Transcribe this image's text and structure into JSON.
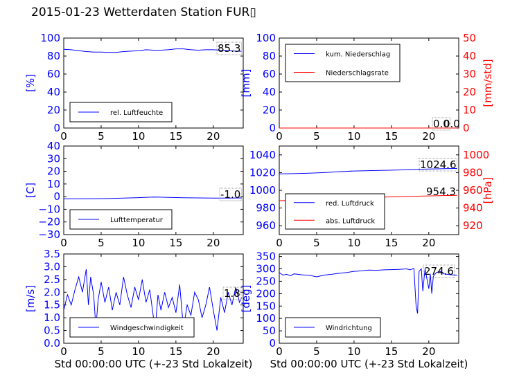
{
  "title": "2015-01-23 Wetterdaten Station FUR▯",
  "colors": {
    "primary": "#0000ff",
    "secondary": "#ff0000",
    "axis": "#000000"
  },
  "chart_data": [
    {
      "id": "humidity",
      "type": "line",
      "xlabel": "",
      "xlim": [
        0,
        24
      ],
      "xticks": [
        0,
        5,
        10,
        15,
        20
      ],
      "ylabel": "[%]",
      "ylim": [
        0,
        100
      ],
      "yticks": [
        0,
        20,
        40,
        60,
        80,
        100
      ],
      "current_value": "85.3",
      "legend": "bottom-left",
      "series": [
        {
          "name": "rel. Luftfeuchte",
          "color": "#0000ff",
          "x": [
            0,
            1,
            2,
            3,
            4,
            5,
            6,
            7,
            8,
            9,
            10,
            11,
            12,
            13,
            14,
            15,
            16,
            17,
            18,
            19,
            20,
            21,
            22,
            23,
            23.8
          ],
          "y": [
            87.5,
            87,
            86,
            85,
            84.5,
            84.5,
            84,
            84,
            85,
            85.5,
            86,
            87,
            86.5,
            86.5,
            87,
            88,
            88,
            87,
            86.5,
            87,
            87,
            86.5,
            86,
            85.5,
            85.3
          ]
        }
      ]
    },
    {
      "id": "precipitation",
      "type": "line",
      "xlabel": "",
      "xlim": [
        0,
        24
      ],
      "xticks": [
        0,
        5,
        10,
        15,
        20
      ],
      "ylabel": "[mm]",
      "ylim": [
        0,
        100
      ],
      "yticks": [
        0,
        20,
        40,
        60,
        80,
        100
      ],
      "ylabel_right": "[mm/std]",
      "ylim_right": [
        0,
        50
      ],
      "yticks_right": [
        0,
        10,
        20,
        30,
        40,
        50
      ],
      "current_value": "0.0",
      "current_value_right": "0.0",
      "legend": "top-left",
      "series": [
        {
          "name": "kum. Niederschlag",
          "color": "#0000ff",
          "axis": "left",
          "x": [
            0,
            23.8
          ],
          "y": [
            0,
            0
          ]
        },
        {
          "name": "Niederschlagsrate",
          "color": "#ff0000",
          "axis": "right",
          "x": [
            0,
            23.8
          ],
          "y": [
            0,
            0
          ]
        }
      ]
    },
    {
      "id": "temperature",
      "type": "line",
      "xlabel": "",
      "xlim": [
        0,
        24
      ],
      "xticks": [
        0,
        5,
        10,
        15,
        20
      ],
      "ylabel": "[C]",
      "ylim": [
        -30,
        40
      ],
      "yticks": [
        -30,
        -20,
        -10,
        0,
        10,
        20,
        30,
        40
      ],
      "current_value": "-1.0",
      "legend": "bottom-left",
      "series": [
        {
          "name": "Lufttemperatur",
          "color": "#0000ff",
          "x": [
            0,
            2,
            4,
            6,
            8,
            10,
            11,
            12,
            13,
            14,
            16,
            18,
            20,
            22,
            23.8
          ],
          "y": [
            -1.7,
            -1.7,
            -1.6,
            -1.5,
            -1.2,
            -0.8,
            -0.5,
            -0.3,
            -0.4,
            -0.6,
            -0.9,
            -1.0,
            -1.1,
            -1.1,
            -1.0
          ]
        }
      ]
    },
    {
      "id": "pressure",
      "type": "line",
      "xlabel": "",
      "xlim": [
        0,
        24
      ],
      "xticks": [
        0,
        5,
        10,
        15,
        20
      ],
      "ylabel": "",
      "ylim": [
        950,
        1050
      ],
      "yticks": [
        960,
        980,
        1000,
        1020,
        1040
      ],
      "ylabel_right": "[hPa]",
      "ylim_right": [
        910,
        1010
      ],
      "yticks_right": [
        920,
        940,
        960,
        980,
        1000
      ],
      "current_value": "1024.6",
      "current_value_right": "954.3",
      "legend": "bottom-left",
      "series": [
        {
          "name": "red. Luftdruck",
          "color": "#0000ff",
          "axis": "left",
          "x": [
            0,
            2,
            4,
            6,
            8,
            10,
            12,
            14,
            16,
            18,
            20,
            22,
            23.8
          ],
          "y": [
            1018.5,
            1018.8,
            1019.3,
            1020.0,
            1021.0,
            1021.8,
            1022.2,
            1022.6,
            1023.0,
            1023.6,
            1024.0,
            1024.4,
            1024.6
          ]
        },
        {
          "name": "abs. Luftdruck",
          "color": "#ff0000",
          "axis": "right",
          "x": [
            0,
            2,
            4,
            6,
            8,
            10,
            12,
            14,
            16,
            18,
            20,
            22,
            23.8
          ],
          "y": [
            948.3,
            948.6,
            949.1,
            949.8,
            950.7,
            951.5,
            951.9,
            952.4,
            952.8,
            953.3,
            953.7,
            954.1,
            954.3
          ]
        }
      ]
    },
    {
      "id": "wind_speed",
      "type": "line",
      "xlabel": "Std 00:00:00 UTC (+-23 Std Lokalzeit)",
      "xlim": [
        0,
        24
      ],
      "xticks": [
        0,
        5,
        10,
        15,
        20
      ],
      "ylabel": "[m/s]",
      "ylim": [
        0,
        3.5
      ],
      "yticks": [
        0.0,
        0.5,
        1.0,
        1.5,
        2.0,
        2.5,
        3.0,
        3.5
      ],
      "current_value": "1.8",
      "legend": "bottom-left",
      "series": [
        {
          "name": "Windgeschwindigkeit",
          "color": "#0000ff",
          "x": [
            0,
            0.5,
            1,
            1.5,
            2,
            2.5,
            3,
            3.3,
            3.6,
            4,
            4.3,
            4.6,
            5,
            5.5,
            6,
            6.5,
            7,
            7.5,
            8,
            8.5,
            9,
            9.5,
            10,
            10.5,
            11,
            11.5,
            12,
            12.3,
            12.6,
            13,
            13.5,
            14,
            14.5,
            15,
            15.5,
            16,
            16.5,
            17,
            17.5,
            18,
            18.5,
            19,
            19.5,
            20,
            20.5,
            21,
            21.5,
            22,
            22.5,
            23,
            23.5,
            23.8
          ],
          "y": [
            1.3,
            1.9,
            1.5,
            2.1,
            2.6,
            2.0,
            2.9,
            1.5,
            2.6,
            1.9,
            0.6,
            1.7,
            2.4,
            1.6,
            2.2,
            1.3,
            2.0,
            1.5,
            2.6,
            1.9,
            1.4,
            2.2,
            1.7,
            2.5,
            1.6,
            2.1,
            1.0,
            0.8,
            1.9,
            1.3,
            2.0,
            1.4,
            1.8,
            1.2,
            2.3,
            0.6,
            1.5,
            1.1,
            2.0,
            1.7,
            1.0,
            1.5,
            2.2,
            1.3,
            0.5,
            1.8,
            1.2,
            2.0,
            1.5,
            2.2,
            1.6,
            1.8
          ]
        }
      ]
    },
    {
      "id": "wind_direction",
      "type": "line",
      "xlabel": "Std 00:00:00 UTC (+-23 Std Lokalzeit)",
      "xlim": [
        0,
        24
      ],
      "xticks": [
        0,
        5,
        10,
        15,
        20
      ],
      "ylabel": "[deg]",
      "ylim": [
        0,
        360
      ],
      "yticks": [
        0,
        50,
        100,
        150,
        200,
        250,
        300,
        350
      ],
      "current_value": "274.6",
      "legend": "bottom-left",
      "series": [
        {
          "name": "Windrichtung",
          "color": "#0000ff",
          "x": [
            0,
            0.5,
            1,
            1.5,
            2,
            3,
            4,
            5,
            6,
            7,
            8,
            9,
            10,
            11,
            12,
            13,
            14,
            15,
            16,
            17,
            17.5,
            18,
            18.3,
            18.5,
            18.7,
            19,
            19.2,
            19.5,
            20,
            20.2,
            20.4,
            20.6,
            21,
            21.5,
            22,
            22.5,
            23,
            23.8
          ],
          "y": [
            285,
            275,
            278,
            272,
            280,
            276,
            274,
            268,
            275,
            278,
            282,
            285,
            290,
            292,
            295,
            294,
            296,
            297,
            298,
            300,
            296,
            302,
            150,
            120,
            290,
            300,
            210,
            300,
            220,
            280,
            200,
            270,
            285,
            290,
            280,
            278,
            276,
            274.6
          ]
        }
      ]
    }
  ]
}
